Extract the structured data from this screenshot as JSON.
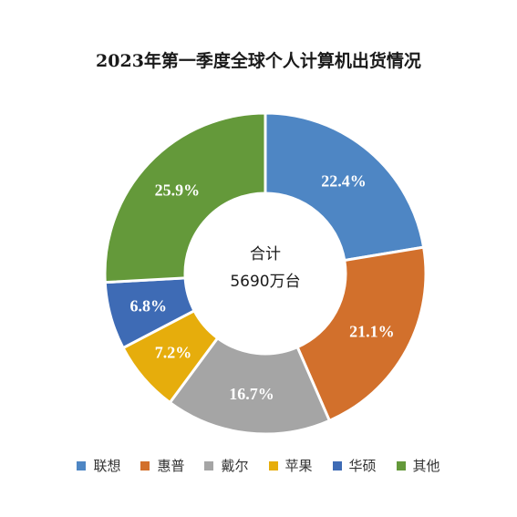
{
  "chart_data": {
    "type": "pie",
    "title": "2023年第一季度全球个人计算机出货情况",
    "center_label_line1": "合计",
    "center_label_line2": "5690万台",
    "categories": [
      "联想",
      "惠普",
      "戴尔",
      "苹果",
      "华硕",
      "其他"
    ],
    "values": [
      22.4,
      21.1,
      16.7,
      7.2,
      6.8,
      25.9
    ],
    "value_labels": [
      "22.4%",
      "21.1%",
      "16.7%",
      "7.2%",
      "6.8%",
      "25.9%"
    ],
    "unit": "%",
    "colors": [
      "#4e86c4",
      "#d2702c",
      "#a5a5a5",
      "#e6ad0c",
      "#3e6bb5",
      "#64993a"
    ],
    "donut": true,
    "legend_position": "bottom"
  }
}
